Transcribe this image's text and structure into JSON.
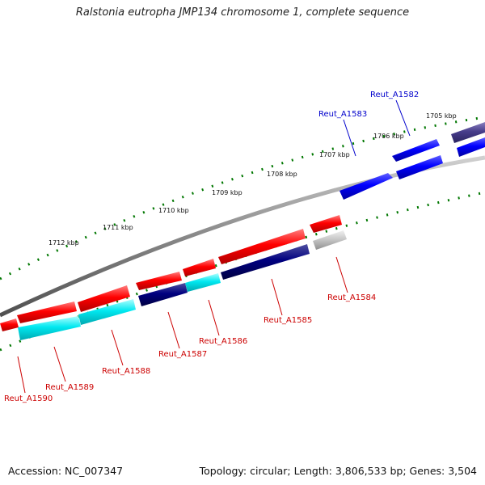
{
  "title": "Ralstonia eutropha JMP134 chromosome 1, complete sequence",
  "accession": "Accession: NC_007347",
  "summary": "Topology: circular; Length: 3,806,533 bp; Genes: 3,504",
  "ticks": [
    "1712 kbp",
    "1711 kbp",
    "1710 kbp",
    "1709 kbp",
    "1708 kbp",
    "1707 kbp",
    "1706 kbp",
    "1705 kbp"
  ],
  "genes": [
    {
      "label": "Reut_A1582",
      "color": "#0000cc"
    },
    {
      "label": "Reut_A1583",
      "color": "#0000cc"
    },
    {
      "label": "Reut_A1584",
      "color": "#cc0000"
    },
    {
      "label": "Reut_A1585",
      "color": "#cc0000"
    },
    {
      "label": "Reut_A1586",
      "color": "#cc0000"
    },
    {
      "label": "Reut_A1587",
      "color": "#cc0000"
    },
    {
      "label": "Reut_A1588",
      "color": "#cc0000"
    },
    {
      "label": "Reut_A1589",
      "color": "#cc0000"
    },
    {
      "label": "Reut_A1590",
      "color": "#cc0000"
    }
  ],
  "colors": {
    "forward": "#0000ff",
    "reverse": "#ff0000",
    "cog_a": "#00dfee",
    "cog_b": "#000080",
    "cog_c": "#bbbbbb",
    "tick": "#007700",
    "backbone": "#888888"
  }
}
